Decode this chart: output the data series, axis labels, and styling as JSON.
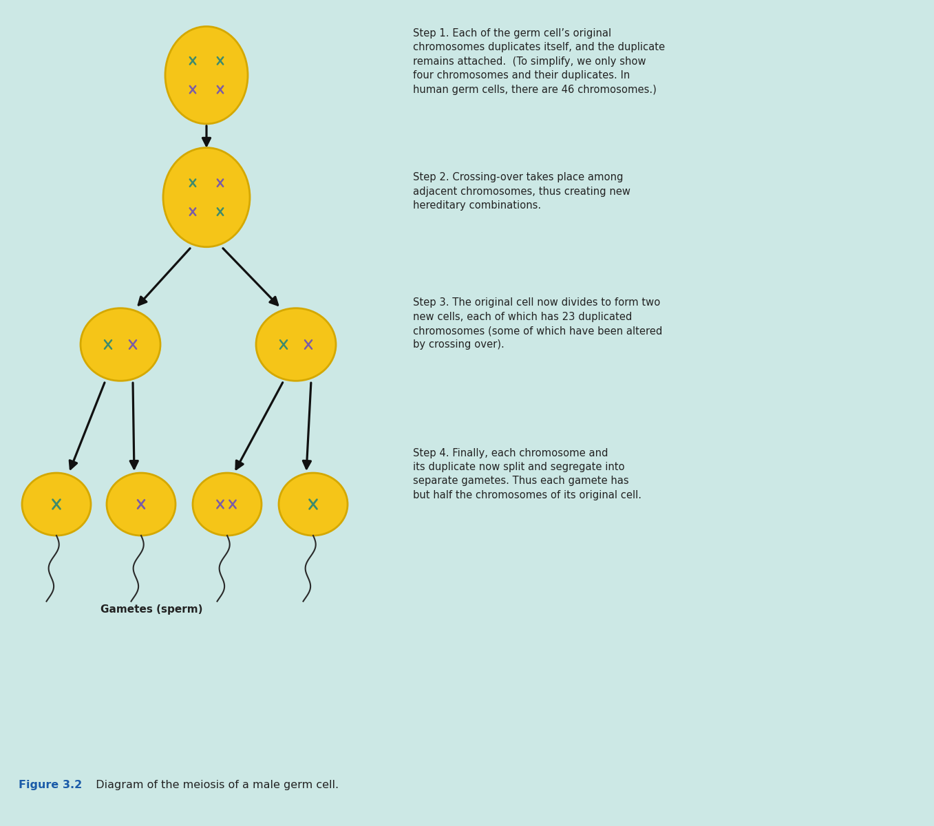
{
  "bg_color": "#cce8e5",
  "cell_color": "#f5c518",
  "cell_edge_color": "#d4a800",
  "chrom_green": "#3d8b6e",
  "chrom_purple": "#7a5ca8",
  "arrow_color": "#111111",
  "text_color": "#222222",
  "figure_label_color": "#1a5ba8",
  "bottom_bar_color": "#ffffff",
  "step1_bold": "Step 1.",
  "step1_body": "Each of the germ cell’s original\nchromosomes duplicates itself, and the duplicate\nremains attached.  (To simplify, we only show\nfour chromosomes and their duplicates. In\nhuman germ cells, there are 46 chromosomes.)",
  "step2_bold": "Step 2.",
  "step2_body": "Crossing-over takes place among\nadjacent chromosomes, thus creating new\nhereditary combinations.",
  "step3_bold": "Step 3.",
  "step3_body": "The original cell now divides to form two\nnew cells, each of which has 23 duplicated\nchromosomes (some of which have been altered\nby crossing over).",
  "step4_bold": "Step 4.",
  "step4_body": "Finally, each chromosome and\nits duplicate now split and segregate into\nseparate gametes. Thus each gamete has\nbut half the chromosomes of its original cell.",
  "gametes_label": "Gametes (sperm)",
  "figure_label": "Figure 3.2",
  "figure_caption": "  Diagram of the meiosis of a male germ cell."
}
